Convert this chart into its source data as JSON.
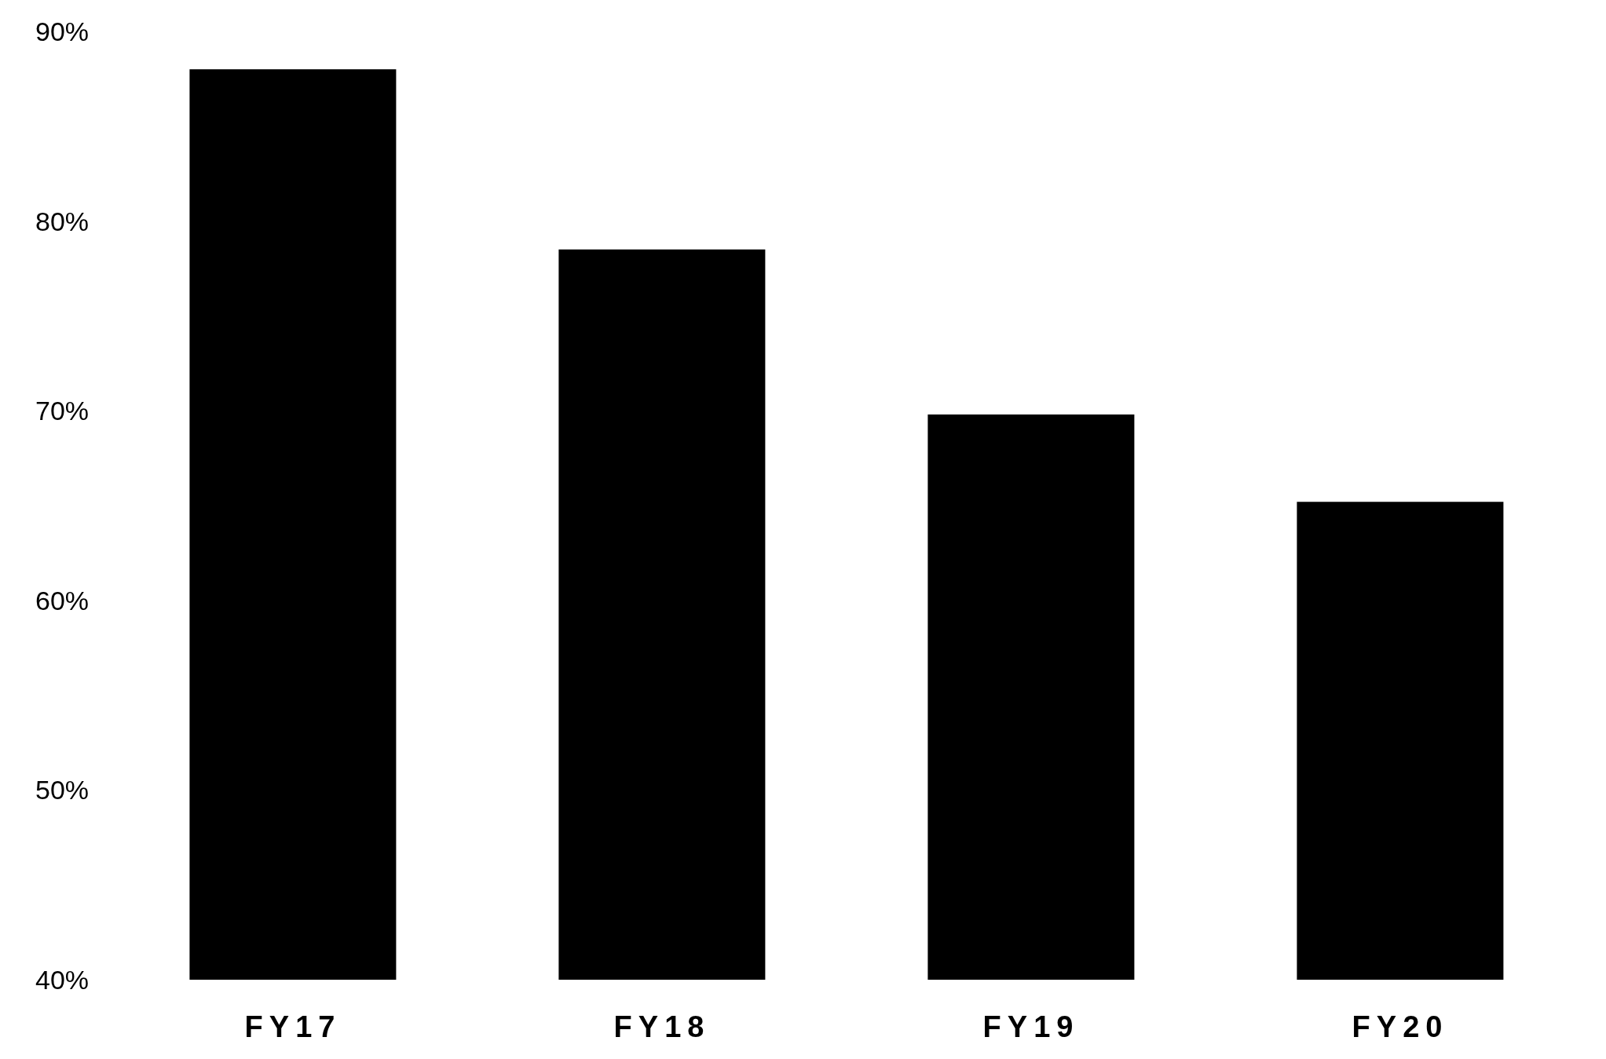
{
  "chart_data": {
    "type": "bar",
    "categories": [
      "FY17",
      "FY18",
      "FY19",
      "FY20"
    ],
    "values": [
      88,
      78.5,
      69.8,
      65.2
    ],
    "color": "#000000",
    "ylim": [
      40,
      90
    ],
    "yticks": [
      {
        "value": 40,
        "label": "40%"
      },
      {
        "value": 50,
        "label": "50%"
      },
      {
        "value": 60,
        "label": "60%"
      },
      {
        "value": 70,
        "label": "70%"
      },
      {
        "value": 80,
        "label": "80%"
      },
      {
        "value": 90,
        "label": "90%"
      }
    ],
    "grid": false,
    "legend": false
  }
}
